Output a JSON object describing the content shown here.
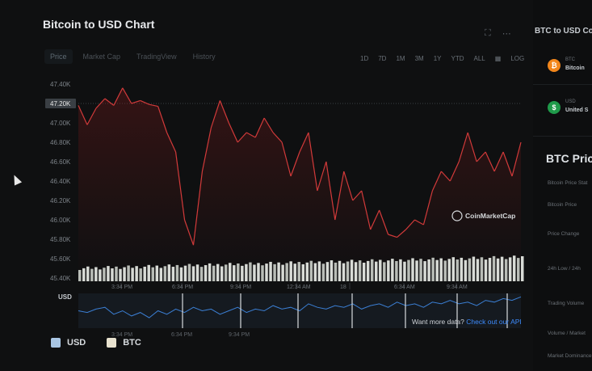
{
  "title": "Bitcoin to USD Chart",
  "tabs": [
    "Price",
    "Market Cap",
    "TradingView",
    "History"
  ],
  "ranges": [
    "1D",
    "7D",
    "1M",
    "3M",
    "1Y",
    "YTD",
    "ALL",
    "calendar-icon",
    "LOG"
  ],
  "y_ticks": [
    "47.40K",
    "47.20K",
    "47.00K",
    "46.80K",
    "46.60K",
    "46.40K",
    "46.20K",
    "46.00K",
    "45.80K",
    "45.60K",
    "45.40K"
  ],
  "current_price_label": "47.20K",
  "x_ticks": [
    "3:34 PM",
    "6:34 PM",
    "9:34 PM",
    "12:34 AM",
    "18",
    "6:34 AM",
    "9:34 AM"
  ],
  "nav_unit_label": "USD",
  "nav_ticks": [
    "3:34 PM",
    "6:34 PM",
    "9:34 PM"
  ],
  "watermark": "CoinMarketCap",
  "footer": {
    "text": "Want more data?",
    "link": "Check out our API"
  },
  "legend": [
    {
      "label": "USD",
      "color": "#a9c6e4"
    },
    {
      "label": "BTC",
      "color": "#e8e2cf"
    }
  ],
  "side": {
    "title": "BTC to USD Co",
    "coins": [
      {
        "symbol": "BTC",
        "name": "Bitcoin",
        "color": "#f2861b",
        "glyph": "₿"
      },
      {
        "symbol": "USD",
        "name": "United S",
        "color": "#1f9a4a",
        "glyph": "$"
      }
    ],
    "stats_title": "BTC Price",
    "stats_rows": [
      "Bitcoin Price Stat",
      "Bitcoin Price",
      "Price Change",
      "24h Low / 24h",
      "Trading Volume",
      "Volume / Market",
      "Market Dominance"
    ]
  },
  "chart_data": {
    "type": "line",
    "ylim": [
      45400,
      47450
    ],
    "price_line": 47200,
    "colors": {
      "up": "#3fb56b",
      "down": "#d23a3a",
      "baseline": "#3fb56b"
    },
    "x": [
      0,
      2,
      4,
      6,
      8,
      10,
      12,
      14,
      16,
      18,
      20,
      22,
      24,
      26,
      28,
      30,
      32,
      34,
      36,
      38,
      40,
      42,
      44,
      46,
      48,
      50,
      52,
      54,
      56,
      58,
      60,
      62,
      64,
      66,
      68,
      70,
      72,
      74,
      76,
      78,
      80,
      82,
      84,
      86,
      88,
      90,
      92,
      94,
      96,
      98,
      100
    ],
    "values": [
      47180,
      46980,
      47150,
      47250,
      47180,
      47360,
      47200,
      47230,
      47190,
      47170,
      46900,
      46700,
      46000,
      45740,
      46500,
      46950,
      47230,
      47000,
      46800,
      46900,
      46850,
      47050,
      46900,
      46800,
      46450,
      46700,
      46900,
      46300,
      46600,
      46000,
      46500,
      46200,
      46300,
      45900,
      46100,
      45850,
      45820,
      45900,
      46000,
      45950,
      46300,
      46500,
      46400,
      46600,
      46900,
      46600,
      46700,
      46500,
      46700,
      46450,
      46800
    ],
    "volume_values": [
      1,
      1.1,
      1.2,
      1.3,
      1.4,
      1.5,
      1.6,
      1.7,
      1.8,
      1.9,
      2.0,
      2.1,
      2.2,
      2.3,
      2.4,
      2.5,
      2.6,
      2.7,
      2.8,
      2.9,
      3.0,
      3.1,
      3.2,
      3.3,
      3.4,
      3.5,
      3.6,
      3.7,
      3.8,
      3.9,
      4.0,
      4.1,
      4.2,
      4.3,
      4.4,
      4.5,
      4.6,
      4.7,
      4.8,
      4.9,
      5.0,
      5.1,
      5.2,
      5.3,
      5.4,
      5.5,
      5.6,
      5.7,
      5.8,
      5.9,
      6.0
    ],
    "nav_values": [
      0.5,
      0.45,
      0.55,
      0.6,
      0.4,
      0.5,
      0.35,
      0.45,
      0.3,
      0.5,
      0.4,
      0.55,
      0.45,
      0.6,
      0.5,
      0.55,
      0.4,
      0.5,
      0.6,
      0.45,
      0.55,
      0.5,
      0.65,
      0.55,
      0.6,
      0.5,
      0.7,
      0.6,
      0.55,
      0.65,
      0.6,
      0.7,
      0.55,
      0.65,
      0.7,
      0.6,
      0.75,
      0.65,
      0.7,
      0.6,
      0.75,
      0.7,
      0.8,
      0.7,
      0.75,
      0.65,
      0.8,
      0.75,
      0.85,
      0.8,
      0.9
    ]
  }
}
